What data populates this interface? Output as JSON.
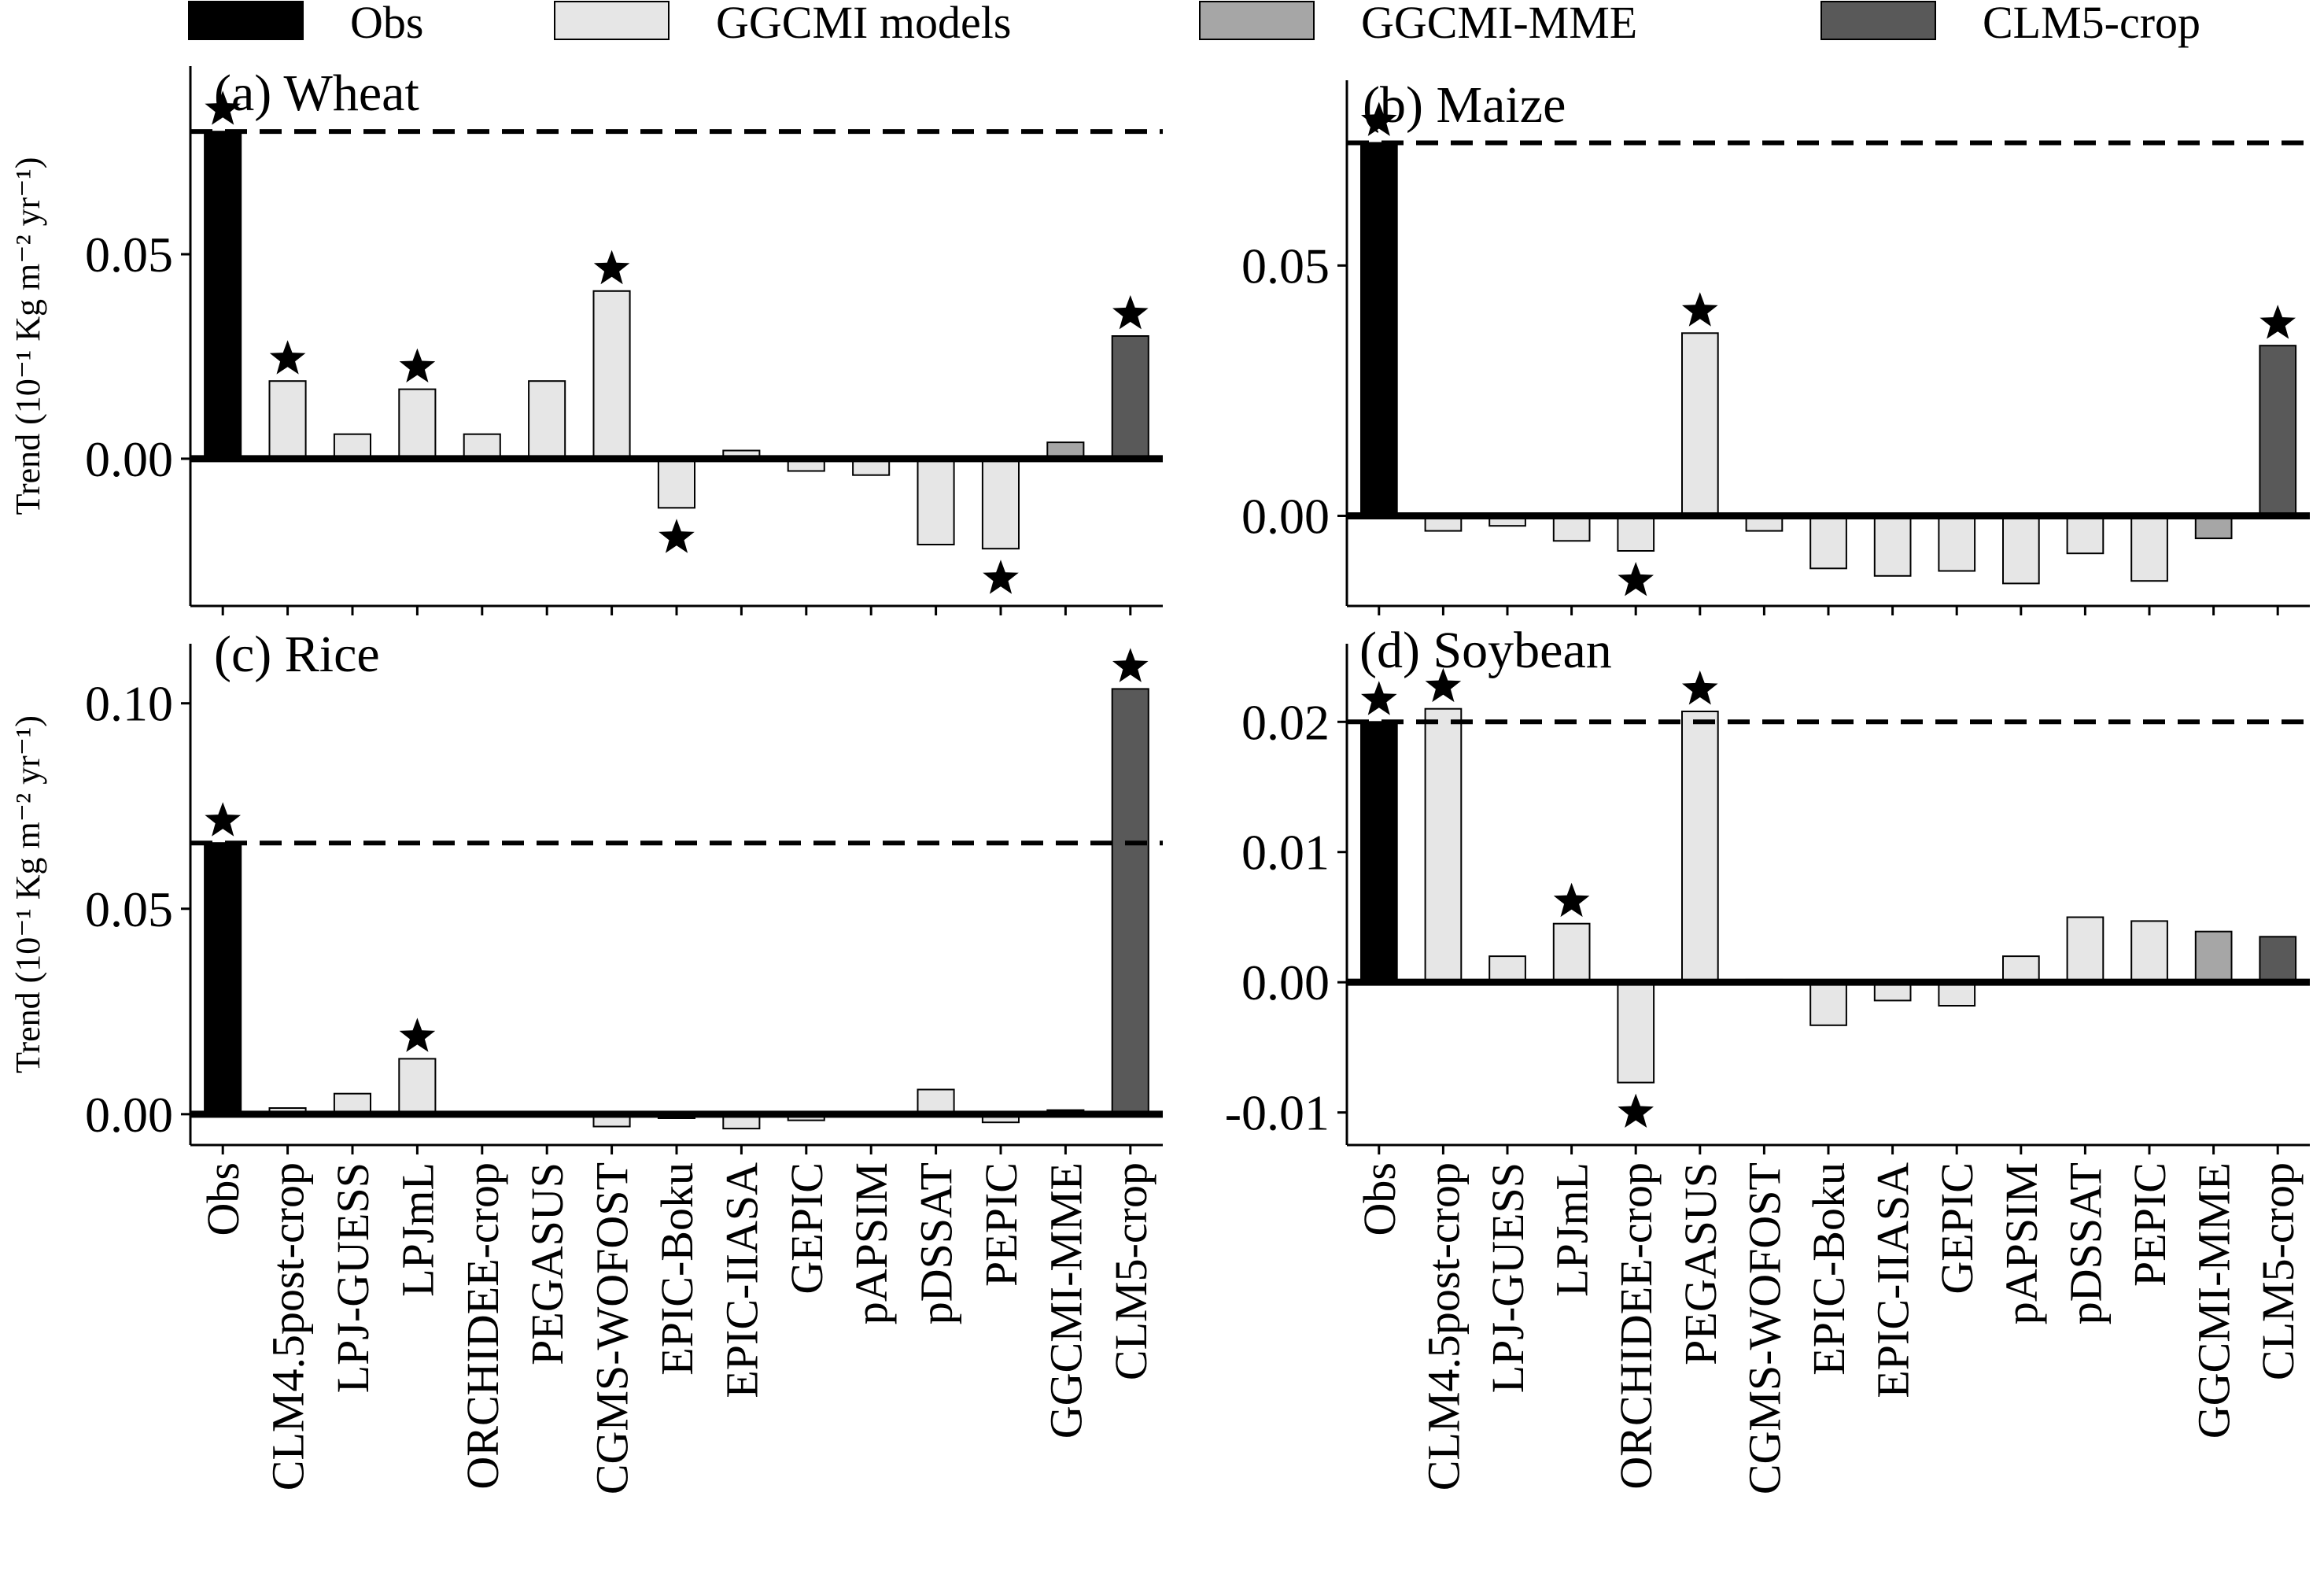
{
  "legend": [
    {
      "label": "Obs",
      "color": "#000000"
    },
    {
      "label": "GGCMI models",
      "color": "#e6e6e6"
    },
    {
      "label": "GGCMI-MME",
      "color": "#a6a6a6"
    },
    {
      "label": "CLM5-crop",
      "color": "#595959"
    }
  ],
  "ylabel": "Trend (10⁻¹ Kg m⁻² yr⁻¹)",
  "chart_data": [
    {
      "type": "bar",
      "title": "(a) Wheat",
      "categories": [
        "Obs",
        "CLM4.5post-crop",
        "LPJ-GUESS",
        "LPJmL",
        "ORCHIDEE-crop",
        "PEGASUS",
        "CGMS-WOFOST",
        "EPIC-Boku",
        "EPIC-IIASA",
        "GEPIC",
        "pAPSIM",
        "pDSSAT",
        "PEPIC",
        "GGCMI-MME",
        "CLM5-crop"
      ],
      "values": [
        0.08,
        0.019,
        0.006,
        0.017,
        0.006,
        0.019,
        0.041,
        -0.012,
        0.002,
        -0.003,
        -0.004,
        -0.021,
        -0.022,
        0.004,
        0.03
      ],
      "significant": [
        true,
        true,
        false,
        true,
        false,
        false,
        true,
        true,
        false,
        false,
        false,
        false,
        true,
        false,
        true
      ],
      "reference_line": 0.08,
      "ylim": [
        -0.036,
        0.096
      ],
      "yticks": [
        0.0,
        0.05
      ],
      "ytick_labels": [
        "0.00",
        "0.05"
      ],
      "ylabel": "Trend (10⁻¹ Kg m⁻² yr⁻¹)"
    },
    {
      "type": "bar",
      "title": "(b) Maize",
      "categories": [
        "Obs",
        "CLM4.5post-crop",
        "LPJ-GUESS",
        "LPJmL",
        "ORCHIDEE-crop",
        "PEGASUS",
        "CGMS-WOFOST",
        "EPIC-Boku",
        "EPIC-IIASA",
        "GEPIC",
        "pAPSIM",
        "pDSSAT",
        "PEPIC",
        "GGCMI-MME",
        "CLM5-crop"
      ],
      "values": [
        0.0745,
        -0.003,
        -0.002,
        -0.005,
        -0.007,
        0.0365,
        -0.003,
        -0.0105,
        -0.012,
        -0.011,
        -0.0135,
        -0.0075,
        -0.013,
        -0.0045,
        0.034
      ],
      "significant": [
        true,
        false,
        false,
        false,
        true,
        true,
        false,
        false,
        false,
        false,
        false,
        false,
        false,
        false,
        true
      ],
      "reference_line": 0.0745,
      "ylim": [
        -0.018,
        0.087
      ],
      "yticks": [
        0.0,
        0.05
      ],
      "ytick_labels": [
        "0.00",
        "0.05"
      ]
    },
    {
      "type": "bar",
      "title": "(c) Rice",
      "categories": [
        "Obs",
        "CLM4.5post-crop",
        "LPJ-GUESS",
        "LPJmL",
        "ORCHIDEE-crop",
        "PEGASUS",
        "CGMS-WOFOST",
        "EPIC-Boku",
        "EPIC-IIASA",
        "GEPIC",
        "pAPSIM",
        "pDSSAT",
        "PEPIC",
        "GGCMI-MME",
        "CLM5-crop"
      ],
      "values": [
        0.066,
        0.0015,
        0.005,
        0.0135,
        0.0,
        0.0,
        -0.003,
        -0.001,
        -0.0035,
        -0.0015,
        0.0,
        0.006,
        -0.002,
        0.001,
        0.1035
      ],
      "significant": [
        true,
        false,
        false,
        true,
        false,
        false,
        false,
        false,
        false,
        false,
        false,
        false,
        false,
        false,
        true
      ],
      "reference_line": 0.066,
      "ylim": [
        -0.0075,
        0.1145
      ],
      "yticks": [
        0.0,
        0.05,
        0.1
      ],
      "ytick_labels": [
        "0.00",
        "0.05",
        "0.10"
      ],
      "ylabel": "Trend (10⁻¹ Kg m⁻² yr⁻¹)"
    },
    {
      "type": "bar",
      "title": "(d) Soybean",
      "categories": [
        "Obs",
        "CLM4.5post-crop",
        "LPJ-GUESS",
        "LPJmL",
        "ORCHIDEE-crop",
        "PEGASUS",
        "CGMS-WOFOST",
        "EPIC-Boku",
        "EPIC-IIASA",
        "GEPIC",
        "pAPSIM",
        "pDSSAT",
        "PEPIC",
        "GGCMI-MME",
        "CLM5-crop"
      ],
      "values": [
        0.02,
        0.021,
        0.002,
        0.0045,
        -0.0077,
        0.0208,
        0.0002,
        -0.0033,
        -0.0014,
        -0.0018,
        0.002,
        0.005,
        0.0047,
        0.0039,
        0.0035
      ],
      "significant": [
        true,
        true,
        false,
        true,
        true,
        true,
        false,
        false,
        false,
        false,
        false,
        false,
        false,
        false,
        false
      ],
      "reference_line": 0.02,
      "ylim": [
        -0.0125,
        0.026
      ],
      "yticks": [
        -0.01,
        0.0,
        0.01,
        0.02
      ],
      "ytick_labels": [
        "-0.01",
        "0.00",
        "0.01",
        "0.02"
      ]
    }
  ]
}
